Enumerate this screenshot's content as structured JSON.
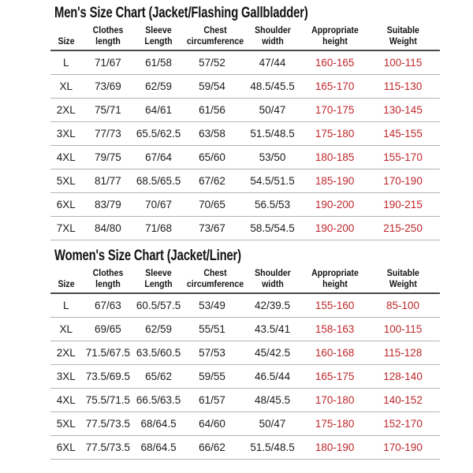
{
  "colors": {
    "text_black": "#1a1a1a",
    "highlight_red": "#bf272b",
    "row_divider": "#b3b3b3",
    "header_divider": "#4a4a4a",
    "background": "#ffffff"
  },
  "men_chart": {
    "title": "Men's Size Chart (Jacket/Flashing Gallbladder)",
    "headers": [
      "Size",
      "Clothes\nlength",
      "Sleeve\nLength",
      "Chest\ncircumference",
      "Shoulder\nwidth",
      "Appropriate\nheight",
      "Suitable\nWeight"
    ],
    "rows": [
      [
        "L",
        "71/67",
        "61/58",
        "57/52",
        "47/44",
        "160-165",
        "100-115"
      ],
      [
        "XL",
        "73/69",
        "62/59",
        "59/54",
        "48.5/45.5",
        "165-170",
        "115-130"
      ],
      [
        "2XL",
        "75/71",
        "64/61",
        "61/56",
        "50/47",
        "170-175",
        "130-145"
      ],
      [
        "3XL",
        "77/73",
        "65.5/62.5",
        "63/58",
        "51.5/48.5",
        "175-180",
        "145-155"
      ],
      [
        "4XL",
        "79/75",
        "67/64",
        "65/60",
        "53/50",
        "180-185",
        "155-170"
      ],
      [
        "5XL",
        "81/77",
        "68.5/65.5",
        "67/62",
        "54.5/51.5",
        "185-190",
        "170-190"
      ],
      [
        "6XL",
        "83/79",
        "70/67",
        "70/65",
        "56.5/53",
        "190-200",
        "190-215"
      ],
      [
        "7XL",
        "84/80",
        "71/68",
        "73/67",
        "58.5/54.5",
        "190-200",
        "215-250"
      ]
    ]
  },
  "women_chart": {
    "title": "Women's Size Chart (Jacket/Liner)",
    "headers": [
      "Size",
      "Clothes\nlength",
      "Sleeve\nLength",
      "Chest\ncircumference",
      "Shoulder\nwidth",
      "Appropriate\nheight",
      "Suitable\nWeight"
    ],
    "rows": [
      [
        "L",
        "67/63",
        "60.5/57.5",
        "53/49",
        "42/39.5",
        "155-160",
        "85-100"
      ],
      [
        "XL",
        "69/65",
        "62/59",
        "55/51",
        "43.5/41",
        "158-163",
        "100-115"
      ],
      [
        "2XL",
        "71.5/67.5",
        "63.5/60.5",
        "57/53",
        "45/42.5",
        "160-168",
        "115-128"
      ],
      [
        "3XL",
        "73.5/69.5",
        "65/62",
        "59/55",
        "46.5/44",
        "165-175",
        "128-140"
      ],
      [
        "4XL",
        "75.5/71.5",
        "66.5/63.5",
        "61/57",
        "48/45.5",
        "170-180",
        "140-152"
      ],
      [
        "5XL",
        "77.5/73.5",
        "68/64.5",
        "64/60",
        "50/47",
        "175-180",
        "152-170"
      ],
      [
        "6XL",
        "77.5/73.5",
        "68/64.5",
        "66/62",
        "51.5/48.5",
        "180-190",
        "170-190"
      ]
    ]
  }
}
